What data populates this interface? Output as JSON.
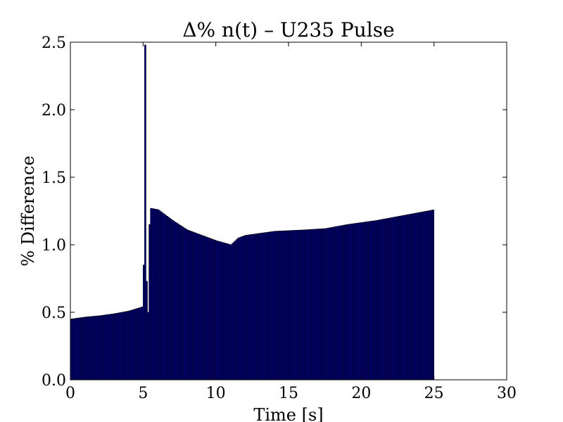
{
  "chart_data": {
    "type": "bar",
    "title": "Δ% n(t)  –  U235 Pulse",
    "xlabel": "Time [s]",
    "ylabel": "% Difference",
    "xlim": [
      0,
      30
    ],
    "ylim": [
      0,
      2.5
    ],
    "x_ticks": [
      "0",
      "5",
      "10",
      "15",
      "20",
      "25",
      "30"
    ],
    "y_ticks": [
      "0.0",
      "0.5",
      "1.0",
      "1.5",
      "2.0",
      "2.5"
    ],
    "x_tick_values": [
      0,
      5,
      10,
      15,
      20,
      25,
      30
    ],
    "y_tick_values": [
      0.0,
      0.5,
      1.0,
      1.5,
      2.0,
      2.5
    ],
    "grid": false,
    "legend": "none",
    "bar_color": "#000080",
    "bar_edge_color": "#000000",
    "bar_width": 0.1,
    "key_points": [
      {
        "t": 0.0,
        "v": 0.45
      },
      {
        "t": 1.0,
        "v": 0.465
      },
      {
        "t": 2.0,
        "v": 0.475
      },
      {
        "t": 3.0,
        "v": 0.49
      },
      {
        "t": 4.0,
        "v": 0.51
      },
      {
        "t": 4.9,
        "v": 0.54
      },
      {
        "t": 5.0,
        "v": 0.85
      },
      {
        "t": 5.1,
        "v": 2.48
      },
      {
        "t": 5.2,
        "v": 0.73
      },
      {
        "t": 5.3,
        "v": 0.5
      },
      {
        "t": 5.4,
        "v": 1.15
      },
      {
        "t": 5.5,
        "v": 1.27
      },
      {
        "t": 6.0,
        "v": 1.26
      },
      {
        "t": 7.0,
        "v": 1.18
      },
      {
        "t": 8.0,
        "v": 1.11
      },
      {
        "t": 9.0,
        "v": 1.07
      },
      {
        "t": 10.0,
        "v": 1.03
      },
      {
        "t": 11.0,
        "v": 1.0
      },
      {
        "t": 11.5,
        "v": 1.05
      },
      {
        "t": 12.0,
        "v": 1.07
      },
      {
        "t": 14.0,
        "v": 1.1
      },
      {
        "t": 16.0,
        "v": 1.11
      },
      {
        "t": 17.5,
        "v": 1.12
      },
      {
        "t": 19.0,
        "v": 1.15
      },
      {
        "t": 21.0,
        "v": 1.18
      },
      {
        "t": 23.0,
        "v": 1.22
      },
      {
        "t": 25.0,
        "v": 1.26
      }
    ]
  }
}
